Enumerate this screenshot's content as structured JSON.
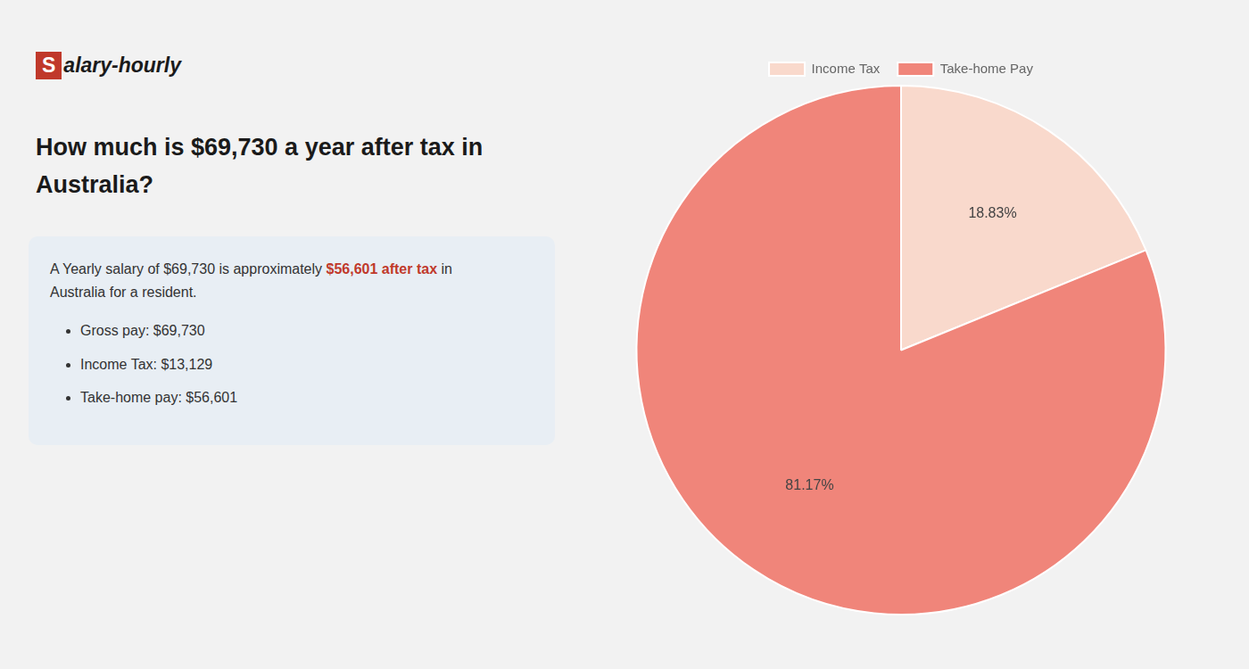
{
  "chart_data": {
    "type": "pie",
    "title": [
      "How much is $69,730 a year after tax in",
      "Australia?"
    ],
    "annotations": [
      "S",
      "alary-hourly",
      "A Yearly salary of $69,730 is approximately ",
      "$56,601 after tax",
      " in",
      "Australia for a resident.",
      "Gross pay: $69,730",
      "Income Tax: $13,129",
      "Take-home pay: $56,601"
    ],
    "categories": [
      "Income Tax",
      "Take-home Pay"
    ],
    "values": [
      18.83,
      81.17
    ],
    "value_labels": [
      "18.83%",
      "81.17%"
    ],
    "colors": [
      "#f9d9cc",
      "#f0857a"
    ],
    "data_labels": true,
    "legend": "top"
  }
}
